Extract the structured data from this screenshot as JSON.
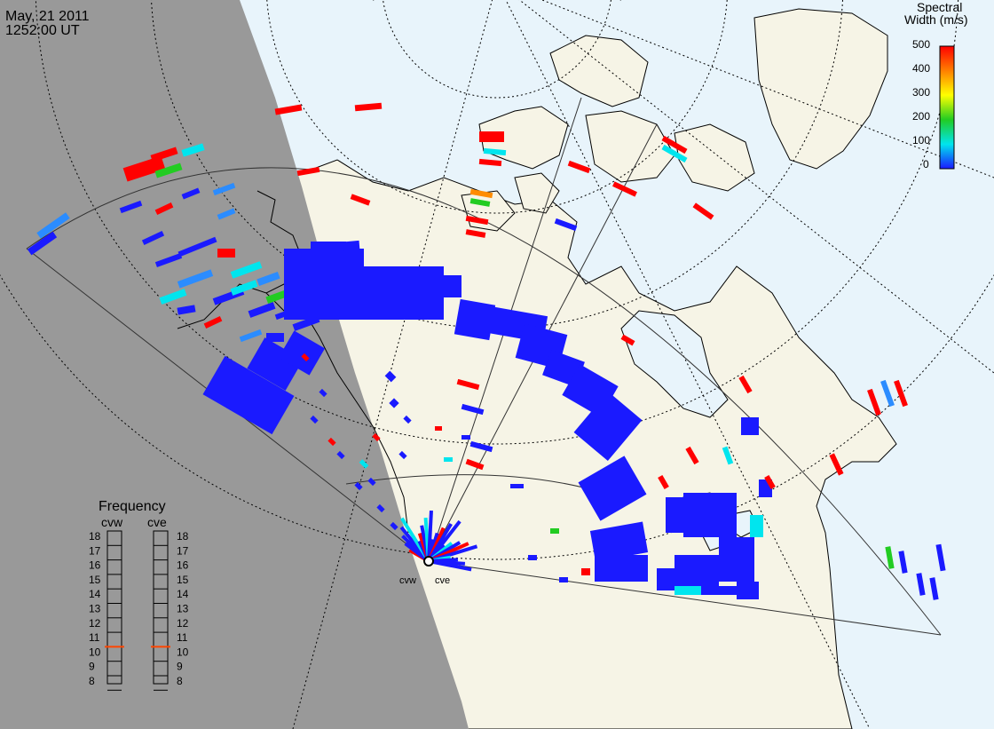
{
  "header": {
    "date": "May, 21 2011",
    "time": "1252:00 UT"
  },
  "colorbar": {
    "title_line1": "Spectral",
    "title_line2": "Width (m/s)",
    "ticks": [
      "500",
      "400",
      "300",
      "200",
      "100",
      "0"
    ],
    "scale_colors": [
      "#ff0000",
      "#ff8c00",
      "#ffff00",
      "#22cc22",
      "#00e5ee",
      "#1a1aff"
    ]
  },
  "frequency_panel": {
    "title": "Frequency",
    "radar_west_label": "cvw",
    "radar_east_label": "cve",
    "levels": [
      "18",
      "17",
      "16",
      "15",
      "14",
      "13",
      "12",
      "11",
      "10",
      "9",
      "8"
    ],
    "cvw_marker_mhz": 10.5,
    "cve_marker_mhz": 10.5,
    "marker_color": "#ff4500"
  },
  "radar_labels": {
    "west": "cvw",
    "east": "cve"
  },
  "colors": {
    "night": "#999999",
    "ocean": "#e8f4fb",
    "land": "#f6f4e6",
    "low_width": "#1a1aff",
    "cyan": "#00e5ee",
    "high_width": "#ff0000",
    "green": "#22cc22",
    "orange": "#ff8c00"
  }
}
